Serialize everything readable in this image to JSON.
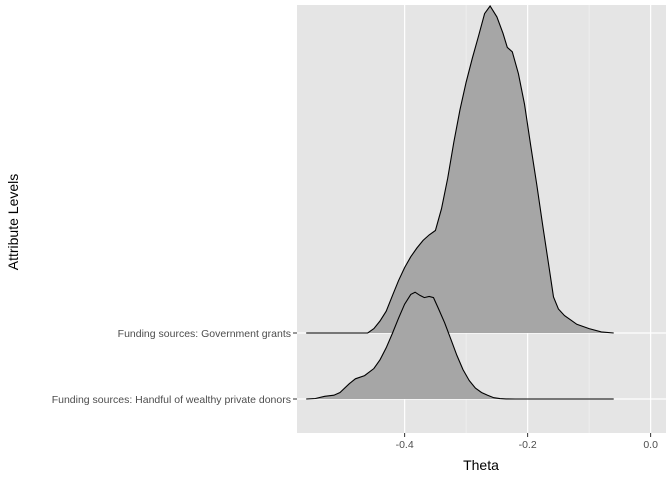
{
  "chart_data": {
    "type": "ridgeline",
    "xlabel": "Theta",
    "ylabel": "Attribute Levels",
    "xlim": [
      -0.575,
      0.025
    ],
    "x_ticks": [
      -0.4,
      -0.2,
      0.0
    ],
    "x_tick_labels": [
      "-0.4",
      "-0.2",
      "0.0"
    ],
    "grid": true,
    "fill_color": "#a6a6a6",
    "panel_color": "#e5e5e5",
    "series": [
      {
        "name": "Funding sources: Handful of wealthy private donors",
        "x_range": [
          -0.56,
          -0.06
        ],
        "density": [
          [
            -0.56,
            0.0
          ],
          [
            -0.545,
            0.005
          ],
          [
            -0.53,
            0.025
          ],
          [
            -0.515,
            0.035
          ],
          [
            -0.505,
            0.06
          ],
          [
            -0.49,
            0.14
          ],
          [
            -0.48,
            0.185
          ],
          [
            -0.465,
            0.215
          ],
          [
            -0.45,
            0.28
          ],
          [
            -0.44,
            0.36
          ],
          [
            -0.43,
            0.47
          ],
          [
            -0.42,
            0.6
          ],
          [
            -0.41,
            0.74
          ],
          [
            -0.4,
            0.87
          ],
          [
            -0.39,
            0.96
          ],
          [
            -0.383,
            0.98
          ],
          [
            -0.375,
            0.95
          ],
          [
            -0.368,
            0.93
          ],
          [
            -0.36,
            0.94
          ],
          [
            -0.353,
            0.93
          ],
          [
            -0.345,
            0.83
          ],
          [
            -0.335,
            0.7
          ],
          [
            -0.325,
            0.55
          ],
          [
            -0.315,
            0.4
          ],
          [
            -0.305,
            0.27
          ],
          [
            -0.295,
            0.17
          ],
          [
            -0.285,
            0.1
          ],
          [
            -0.275,
            0.06
          ],
          [
            -0.265,
            0.035
          ],
          [
            -0.255,
            0.012
          ],
          [
            -0.245,
            0.004
          ],
          [
            -0.235,
            0.001
          ],
          [
            -0.22,
            0.0
          ],
          [
            -0.06,
            0.0
          ]
        ]
      },
      {
        "name": "Funding sources: Government grants",
        "x_range": [
          -0.56,
          -0.06
        ],
        "density": [
          [
            -0.56,
            0.0
          ],
          [
            -0.46,
            0.0
          ],
          [
            -0.45,
            0.04
          ],
          [
            -0.44,
            0.11
          ],
          [
            -0.43,
            0.2
          ],
          [
            -0.42,
            0.34
          ],
          [
            -0.41,
            0.48
          ],
          [
            -0.4,
            0.6
          ],
          [
            -0.39,
            0.7
          ],
          [
            -0.38,
            0.78
          ],
          [
            -0.37,
            0.85
          ],
          [
            -0.36,
            0.9
          ],
          [
            -0.35,
            0.94
          ],
          [
            -0.34,
            1.14
          ],
          [
            -0.33,
            1.42
          ],
          [
            -0.32,
            1.75
          ],
          [
            -0.31,
            2.05
          ],
          [
            -0.3,
            2.3
          ],
          [
            -0.29,
            2.52
          ],
          [
            -0.28,
            2.72
          ],
          [
            -0.27,
            2.93
          ],
          [
            -0.261,
            3.0
          ],
          [
            -0.25,
            2.9
          ],
          [
            -0.24,
            2.75
          ],
          [
            -0.233,
            2.62
          ],
          [
            -0.225,
            2.58
          ],
          [
            -0.215,
            2.38
          ],
          [
            -0.205,
            2.1
          ],
          [
            -0.195,
            1.72
          ],
          [
            -0.185,
            1.36
          ],
          [
            -0.175,
            0.97
          ],
          [
            -0.165,
            0.6
          ],
          [
            -0.158,
            0.33
          ],
          [
            -0.15,
            0.22
          ],
          [
            -0.14,
            0.16
          ],
          [
            -0.13,
            0.12
          ],
          [
            -0.12,
            0.08
          ],
          [
            -0.1,
            0.04
          ],
          [
            -0.08,
            0.01
          ],
          [
            -0.06,
            0.0
          ]
        ]
      }
    ]
  }
}
